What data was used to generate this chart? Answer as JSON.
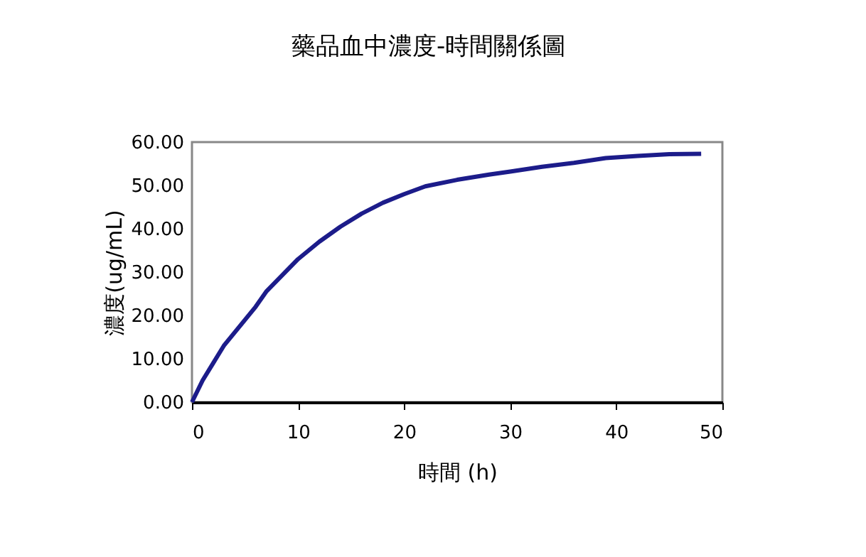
{
  "chart_data": {
    "type": "line",
    "title": "藥品血中濃度-時間關係圖",
    "xlabel": "時間   (h)",
    "ylabel": "濃度(ug/mL)",
    "x": [
      0,
      1,
      2,
      3,
      4,
      5,
      6,
      7,
      8,
      10,
      12,
      14,
      16,
      18,
      20,
      22,
      25,
      28,
      30,
      33,
      36,
      39,
      42,
      45,
      48
    ],
    "series": [
      {
        "color": "#1c1c8a",
        "values": [
          0,
          5,
          9,
          13,
          16,
          19,
          22,
          25.5,
          28,
          33,
          37,
          40.5,
          43.5,
          46,
          48,
          49.8,
          51.3,
          52.5,
          53.2,
          54.3,
          55.2,
          56.3,
          56.8,
          57.2,
          57.3
        ]
      }
    ],
    "xlim": [
      0,
      50
    ],
    "xticks": [
      0,
      10,
      20,
      30,
      40,
      50
    ],
    "ylim": [
      0,
      60
    ],
    "yticks": [
      {
        "value": 0,
        "label": "0.00"
      },
      {
        "value": 10,
        "label": "10.00"
      },
      {
        "value": 20,
        "label": "20.00"
      },
      {
        "value": 30,
        "label": "30.00"
      },
      {
        "value": 40,
        "label": "40.00"
      },
      {
        "value": 50,
        "label": "50.00"
      },
      {
        "value": 60,
        "label": "60.00"
      }
    ],
    "grid": false,
    "marker": "none",
    "line_style": "solid"
  }
}
